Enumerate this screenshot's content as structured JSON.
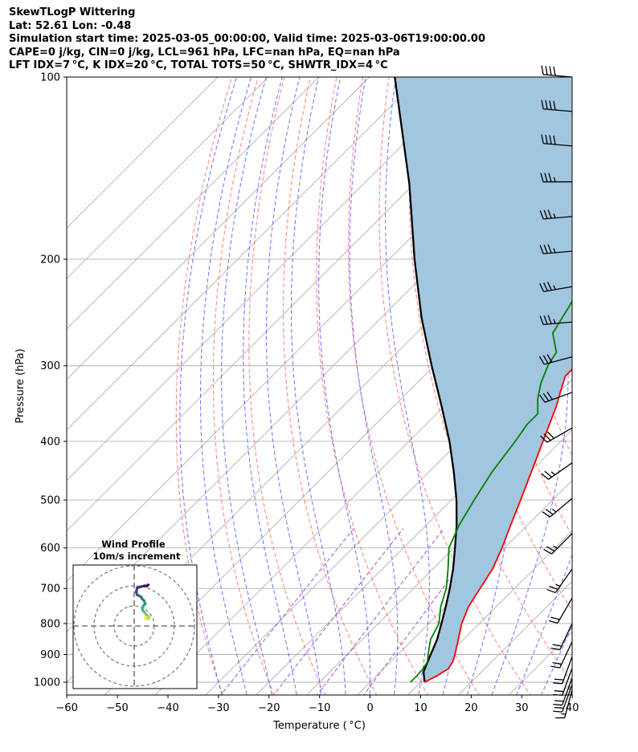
{
  "header": {
    "lines": [
      "SkewTLogP Wittering",
      "Lat: 52.61   Lon: -0.48",
      "Simulation start time: 2025-03-05_00:00:00, Valid time: 2025-03-06T19:00:00.00",
      "CAPE=0 j/kg, CIN=0 j/kg, LCL=961 hPa, LFC=nan hPa, EQ=nan hPa",
      "LFT IDX=7 °C, K IDX=20 °C, TOTAL TOTS=50 °C, SHWTR_IDX=4 °C"
    ]
  },
  "chart_data": {
    "type": "line",
    "kind": "skew-T log-P diagram",
    "xlabel": "Temperature ( °C)",
    "ylabel": "Pressure (hPa)",
    "xlim": [
      -60,
      40
    ],
    "ylim_hpa": [
      1050,
      100
    ],
    "y_scale": "log",
    "x_ticks": [
      -60,
      -50,
      -40,
      -30,
      -20,
      -10,
      0,
      10,
      20,
      30,
      40
    ],
    "y_ticks": [
      100,
      200,
      300,
      400,
      500,
      600,
      700,
      800,
      900,
      1000
    ],
    "grid": true,
    "colors": {
      "temperature": "#ff0000",
      "dewpoint": "#008000",
      "parcel": "#000000",
      "cape_fill": "#a3c6e0",
      "dry_adiabats": "#ff6666",
      "moist_adiabats": "#5555ff",
      "mixing_ratio": "#9955cc",
      "isotherms": "#b0b0b0",
      "barbs": "#000000"
    },
    "series": [
      {
        "points": [
          [
            1000,
            10.8
          ],
          [
            975,
            12.0
          ],
          [
            950,
            12.8
          ],
          [
            925,
            12.3
          ],
          [
            900,
            11.3
          ],
          [
            850,
            9.0
          ],
          [
            800,
            6.5
          ],
          [
            750,
            4.5
          ],
          [
            700,
            3.2
          ],
          [
            650,
            1.8
          ],
          [
            600,
            -0.5
          ],
          [
            550,
            -3.3
          ],
          [
            500,
            -6.3
          ],
          [
            450,
            -9.7
          ],
          [
            400,
            -13.5
          ],
          [
            350,
            -17.8
          ],
          [
            330,
            -20.0
          ],
          [
            312,
            -22.0
          ],
          [
            300,
            -22.0
          ],
          [
            288,
            -22.0
          ],
          [
            270,
            -17.5
          ],
          [
            250,
            -16.0
          ],
          [
            230,
            -15.5
          ],
          [
            215,
            -15.0
          ],
          [
            205,
            -15.5
          ],
          [
            195,
            -16.0
          ],
          [
            185,
            -16.0
          ],
          [
            175,
            -16.0
          ],
          [
            160,
            -15.0
          ],
          [
            140,
            -14.0
          ],
          [
            130,
            -13.5
          ],
          [
            120,
            -12.5
          ],
          [
            110,
            -12.0
          ],
          [
            100,
            -11.0
          ]
        ]
      },
      {
        "points": [
          [
            1000,
            8.0
          ],
          [
            975,
            8.0
          ],
          [
            950,
            7.8
          ],
          [
            925,
            7.3
          ],
          [
            900,
            6.0
          ],
          [
            850,
            3.5
          ],
          [
            800,
            2.0
          ],
          [
            750,
            -1.0
          ],
          [
            700,
            -3.5
          ],
          [
            650,
            -7.0
          ],
          [
            600,
            -11.0
          ],
          [
            550,
            -13.5
          ],
          [
            500,
            -15.5
          ],
          [
            450,
            -17.5
          ],
          [
            400,
            -19.0
          ],
          [
            375,
            -20.0
          ],
          [
            360,
            -20.0
          ],
          [
            340,
            -23.0
          ],
          [
            320,
            -25.5
          ],
          [
            300,
            -27.5
          ],
          [
            285,
            -28.5
          ],
          [
            265,
            -33.0
          ],
          [
            240,
            -35.0
          ],
          [
            220,
            -37.0
          ],
          [
            205,
            -38.5
          ],
          [
            195,
            -39.0
          ],
          [
            180,
            -37.0
          ],
          [
            170,
            -35.0
          ],
          [
            160,
            -35.5
          ],
          [
            150,
            -37.0
          ],
          [
            140,
            -36.5
          ],
          [
            125,
            -34.0
          ],
          [
            110,
            -31.0
          ],
          [
            100,
            -30.5
          ]
        ]
      },
      {
        "points": [
          [
            1000,
            10.8
          ],
          [
            961,
            8.5
          ],
          [
            900,
            6.5
          ],
          [
            850,
            4.8
          ],
          [
            800,
            2.5
          ],
          [
            750,
            0.0
          ],
          [
            700,
            -2.8
          ],
          [
            650,
            -6.0
          ],
          [
            600,
            -9.8
          ],
          [
            550,
            -14.0
          ],
          [
            500,
            -19.0
          ],
          [
            450,
            -25.0
          ],
          [
            400,
            -32.0
          ],
          [
            350,
            -40.5
          ],
          [
            300,
            -50.5
          ],
          [
            250,
            -62.0
          ],
          [
            200,
            -75.0
          ],
          [
            150,
            -91.0
          ],
          [
            100,
            -115.0
          ]
        ]
      }
    ],
    "wind_barbs": [
      {
        "p": 100,
        "kt": 40,
        "dir_deg": 275
      },
      {
        "p": 114,
        "kt": 40,
        "dir_deg": 275
      },
      {
        "p": 130,
        "kt": 40,
        "dir_deg": 275
      },
      {
        "p": 149,
        "kt": 35,
        "dir_deg": 270
      },
      {
        "p": 170,
        "kt": 35,
        "dir_deg": 265
      },
      {
        "p": 194,
        "kt": 35,
        "dir_deg": 265
      },
      {
        "p": 222,
        "kt": 35,
        "dir_deg": 260
      },
      {
        "p": 254,
        "kt": 35,
        "dir_deg": 265
      },
      {
        "p": 290,
        "kt": 30,
        "dir_deg": 255
      },
      {
        "p": 332,
        "kt": 30,
        "dir_deg": 250
      },
      {
        "p": 380,
        "kt": 30,
        "dir_deg": 240
      },
      {
        "p": 434,
        "kt": 25,
        "dir_deg": 235
      },
      {
        "p": 497,
        "kt": 25,
        "dir_deg": 230
      },
      {
        "p": 568,
        "kt": 25,
        "dir_deg": 225
      },
      {
        "p": 650,
        "kt": 25,
        "dir_deg": 215
      },
      {
        "p": 726,
        "kt": 20,
        "dir_deg": 210
      },
      {
        "p": 800,
        "kt": 20,
        "dir_deg": 205
      },
      {
        "p": 857,
        "kt": 20,
        "dir_deg": 205
      },
      {
        "p": 907,
        "kt": 20,
        "dir_deg": 200
      },
      {
        "p": 948,
        "kt": 20,
        "dir_deg": 200
      },
      {
        "p": 984,
        "kt": 20,
        "dir_deg": 200
      },
      {
        "p": 1010,
        "kt": 20,
        "dir_deg": 200
      },
      {
        "p": 1030,
        "kt": 15,
        "dir_deg": 195
      }
    ],
    "hodograph": {
      "title_line1": "Wind Profile",
      "title_line2": "10m/s increment",
      "rings_ms": [
        10,
        20,
        30
      ],
      "path_uv": [
        [
          5.5,
          4
        ],
        [
          6.5,
          3.5
        ],
        [
          7.5,
          4
        ],
        [
          7.0,
          5
        ],
        [
          6.0,
          5.5
        ],
        [
          5.5,
          6.5
        ],
        [
          4.5,
          7.5
        ],
        [
          4.0,
          8.5
        ],
        [
          4.5,
          10
        ],
        [
          5.5,
          11
        ],
        [
          5.0,
          12.5
        ],
        [
          4.0,
          13.5
        ],
        [
          3.5,
          14.5
        ],
        [
          2.5,
          15.0
        ],
        [
          1.5,
          15.5
        ],
        [
          1.0,
          17.0
        ],
        [
          1.5,
          19.0
        ],
        [
          3.0,
          19.5
        ],
        [
          5.0,
          20.0
        ],
        [
          6.5,
          20.0
        ],
        [
          7.0,
          20.5
        ]
      ]
    }
  }
}
